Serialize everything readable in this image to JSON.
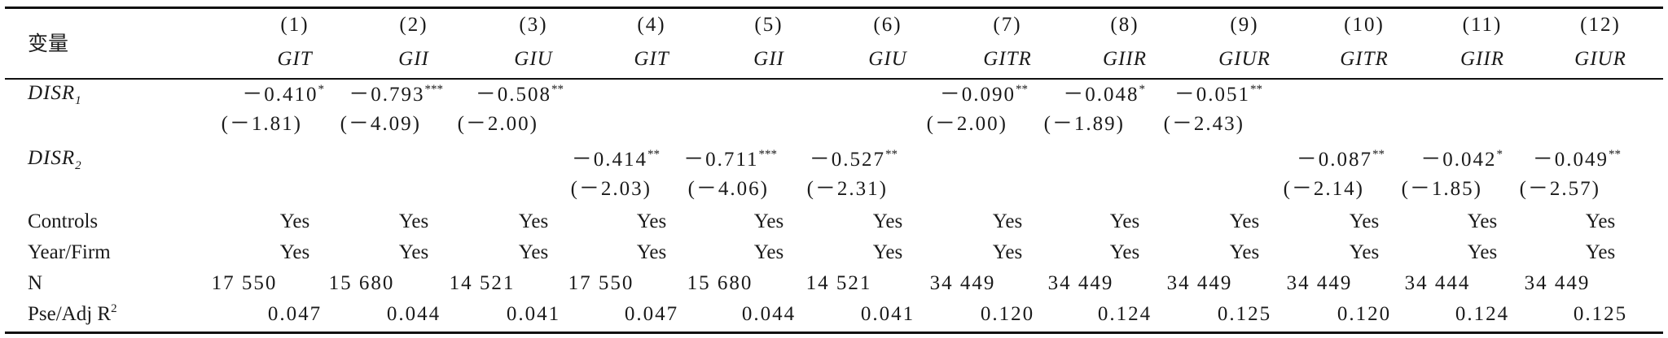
{
  "header": {
    "variable_label": "变量",
    "col_numbers": [
      "(1)",
      "(2)",
      "(3)",
      "(4)",
      "(5)",
      "(6)",
      "(7)",
      "(8)",
      "(9)",
      "(10)",
      "(11)",
      "(12)"
    ],
    "dep_vars": [
      "GIT",
      "GII",
      "GIU",
      "GIT",
      "GII",
      "GIU",
      "GITR",
      "GIIR",
      "GIUR",
      "GITR",
      "GIIR",
      "GIUR"
    ]
  },
  "disr1": {
    "label": "DISR",
    "subscript": "1",
    "coefs": [
      "－0.410",
      "－0.793",
      "－0.508",
      "－0.090",
      "－0.048",
      "－0.051"
    ],
    "stars": [
      "*",
      "***",
      "**",
      "**",
      "*",
      "**"
    ],
    "tstats": [
      "(－1.81)",
      "(－4.09)",
      "(－2.00)",
      "(－2.00)",
      "(－1.89)",
      "(－2.43)"
    ]
  },
  "disr2": {
    "label": "DISR",
    "subscript": "2",
    "coefs": [
      "－0.414",
      "－0.711",
      "－0.527",
      "－0.087",
      "－0.042",
      "－0.049"
    ],
    "stars": [
      "**",
      "***",
      "**",
      "**",
      "*",
      "**"
    ],
    "tstats": [
      "(－2.03)",
      "(－4.06)",
      "(－2.31)",
      "(－2.14)",
      "(－1.85)",
      "(－2.57)"
    ]
  },
  "controls": {
    "label": "Controls",
    "values": [
      "Yes",
      "Yes",
      "Yes",
      "Yes",
      "Yes",
      "Yes",
      "Yes",
      "Yes",
      "Yes",
      "Yes",
      "Yes",
      "Yes"
    ]
  },
  "year_firm": {
    "label": "Year/Firm",
    "values": [
      "Yes",
      "Yes",
      "Yes",
      "Yes",
      "Yes",
      "Yes",
      "Yes",
      "Yes",
      "Yes",
      "Yes",
      "Yes",
      "Yes"
    ]
  },
  "n_row": {
    "label": "N",
    "values": [
      "17 550",
      "15 680",
      "14 521",
      "17 550",
      "15 680",
      "14 521",
      "34 449",
      "34 449",
      "34 449",
      "34 449",
      "34 444",
      "34 449"
    ]
  },
  "r2_row": {
    "label": "Pse/Adj R",
    "label_sup": "2",
    "values": [
      "0.047",
      "0.044",
      "0.041",
      "0.047",
      "0.044",
      "0.041",
      "0.120",
      "0.124",
      "0.125",
      "0.120",
      "0.124",
      "0.125"
    ]
  }
}
